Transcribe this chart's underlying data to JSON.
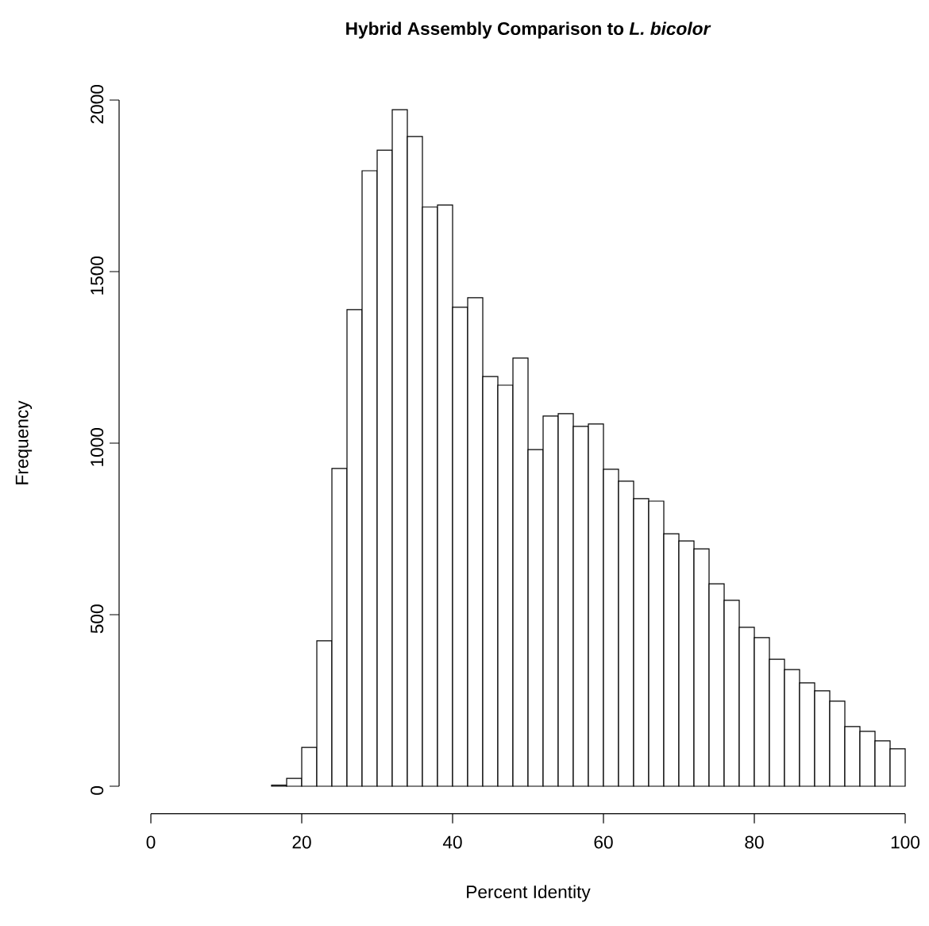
{
  "chart_data": {
    "type": "histogram",
    "title": "Hybrid Assembly Comparison to *L. bicolor*",
    "xlabel": "Percent Identity",
    "ylabel": "Frequency",
    "bins": [
      16,
      18,
      20,
      22,
      24,
      26,
      28,
      30,
      32,
      34,
      36,
      38,
      40,
      42,
      44,
      46,
      48,
      50,
      52,
      54,
      56,
      58,
      60,
      62,
      64,
      66,
      68,
      70,
      72,
      74,
      76,
      78,
      80,
      82,
      84,
      86,
      88,
      90,
      92,
      94,
      96,
      98,
      100
    ],
    "values": [
      3,
      23,
      113,
      424,
      926,
      1389,
      1794,
      1854,
      1972,
      1894,
      1688,
      1694,
      1396,
      1424,
      1194,
      1169,
      1248,
      981,
      1079,
      1086,
      1049,
      1056,
      924,
      889,
      838,
      831,
      736,
      715,
      692,
      590,
      542,
      463,
      433,
      370,
      340,
      301,
      278,
      248,
      174,
      160,
      132,
      109
    ],
    "color": "#ffffff",
    "xlim": [
      0,
      100
    ],
    "ylim": [
      0,
      2000
    ],
    "xticks": [
      0,
      20,
      40,
      60,
      80,
      100
    ],
    "yticks": [
      0,
      500,
      1000,
      1500,
      2000
    ]
  }
}
